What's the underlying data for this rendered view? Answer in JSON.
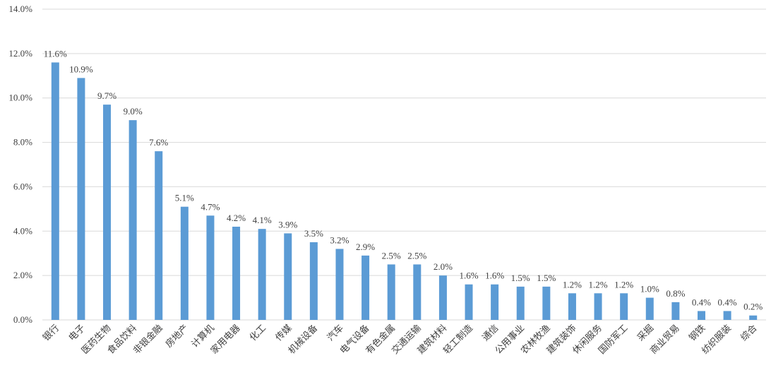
{
  "chart_data": {
    "type": "bar",
    "categories": [
      "银行",
      "电子",
      "医药生物",
      "食品饮料",
      "非银金融",
      "房地产",
      "计算机",
      "家用电器",
      "化工",
      "传媒",
      "机械设备",
      "汽车",
      "电气设备",
      "有色金属",
      "交通运输",
      "建筑材料",
      "轻工制造",
      "通信",
      "公用事业",
      "农林牧渔",
      "建筑装饰",
      "休闲服务",
      "国防军工",
      "采掘",
      "商业贸易",
      "钢铁",
      "纺织服装",
      "综合"
    ],
    "values": [
      11.6,
      10.9,
      9.7,
      9.0,
      7.6,
      5.1,
      4.7,
      4.2,
      4.1,
      3.9,
      3.5,
      3.2,
      2.9,
      2.5,
      2.5,
      2.0,
      1.6,
      1.6,
      1.5,
      1.5,
      1.2,
      1.2,
      1.2,
      1.0,
      0.8,
      0.4,
      0.4,
      0.2
    ],
    "value_labels": [
      "11.6%",
      "10.9%",
      "9.7%",
      "9.0%",
      "7.6%",
      "5.1%",
      "4.7%",
      "4.2%",
      "4.1%",
      "3.9%",
      "3.5%",
      "3.2%",
      "2.9%",
      "2.5%",
      "2.5%",
      "2.0%",
      "1.6%",
      "1.6%",
      "1.5%",
      "1.5%",
      "1.2%",
      "1.2%",
      "1.2%",
      "1.0%",
      "0.8%",
      "0.4%",
      "0.4%",
      "0.2%"
    ],
    "color": "#5b9bd5",
    "ylim": [
      0,
      14
    ],
    "yticks": [
      {
        "value": 0,
        "label": "0.0%"
      },
      {
        "value": 2,
        "label": "2.0%"
      },
      {
        "value": 4,
        "label": "4.0%"
      },
      {
        "value": 6,
        "label": "6.0%"
      },
      {
        "value": 8,
        "label": "8.0%"
      },
      {
        "value": 10,
        "label": "10.0%"
      },
      {
        "value": 12,
        "label": "12.0%"
      },
      {
        "value": 14,
        "label": "14.0%"
      }
    ],
    "grid": true
  }
}
